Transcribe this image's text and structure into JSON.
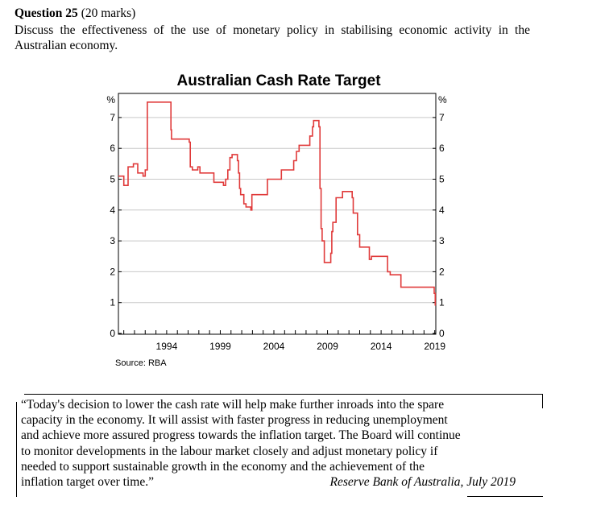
{
  "question": {
    "label": "Question 25",
    "marks": "(20 marks)",
    "text": "Discuss the effectiveness of the use of monetary policy in stabilising economic activity in the Australian economy."
  },
  "chart_data": {
    "type": "line",
    "title": "Australian Cash Rate Target",
    "source": "Source: RBA",
    "ylabel_left": "%",
    "ylabel_right": "%",
    "ylim": [
      0,
      8
    ],
    "yticks": [
      "0",
      "1",
      "2",
      "3",
      "4",
      "5",
      "6",
      "7"
    ],
    "xlim": [
      1990,
      2019.6
    ],
    "xticks": [
      "1994",
      "1999",
      "2004",
      "2009",
      "2014",
      "2019"
    ],
    "series": [
      {
        "name": "Cash Rate Target",
        "x": [
          1990.0,
          1990.5,
          1990.9,
          1991.4,
          1991.8,
          1992.3,
          1992.5,
          1992.7,
          1993.6,
          1994.7,
          1994.9,
          1994.95,
          1996.6,
          1996.7,
          1996.9,
          1997.4,
          1997.6,
          1997.9,
          1998.9,
          1999.8,
          2000.0,
          2000.2,
          2000.4,
          2000.6,
          2001.1,
          2001.2,
          2001.3,
          2001.4,
          2001.7,
          2001.9,
          2002.35,
          2002.45,
          2003.8,
          2003.9,
          2005.2,
          2006.35,
          2006.6,
          2006.85,
          2007.6,
          2007.85,
          2008.1,
          2008.2,
          2008.7,
          2008.8,
          2008.9,
          2009.0,
          2009.2,
          2009.8,
          2009.9,
          2010.0,
          2010.3,
          2010.9,
          2011.8,
          2011.9,
          2012.3,
          2012.5,
          2012.9,
          2013.4,
          2013.6,
          2015.1,
          2015.35,
          2016.35,
          2016.6,
          2019.45,
          2019.55
        ],
        "y": [
          5.1,
          4.8,
          5.4,
          5.5,
          5.2,
          5.1,
          5.3,
          7.5,
          7.5,
          7.5,
          6.6,
          6.3,
          6.2,
          5.4,
          5.3,
          5.4,
          5.2,
          5.2,
          4.9,
          4.8,
          5.0,
          5.3,
          5.7,
          5.8,
          5.6,
          5.2,
          4.7,
          4.5,
          4.2,
          4.1,
          4.0,
          4.5,
          4.5,
          5.0,
          5.3,
          5.6,
          5.9,
          6.1,
          6.1,
          6.4,
          6.7,
          6.9,
          6.7,
          4.7,
          3.4,
          3.0,
          2.3,
          2.6,
          3.3,
          3.6,
          4.4,
          4.6,
          4.4,
          3.9,
          3.2,
          2.8,
          2.8,
          2.4,
          2.5,
          2.0,
          1.9,
          1.5,
          1.5,
          1.3,
          0.9
        ]
      }
    ]
  },
  "quote": {
    "lines": [
      "“Today's decision to lower the cash rate will help make further inroads into the spare",
      "capacity in the economy. It will assist with faster progress in reducing unemployment",
      "and achieve more assured progress towards the inflation target. The Board will continue",
      "to monitor developments in the labour market closely and adjust monetary policy if",
      "needed to support sustainable growth in the economy and the achievement of the",
      "inflation target over time.”"
    ],
    "attribution": "Reserve Bank of Australia, July 2019",
    "colors": {
      "line": "#e03a3a",
      "grid": "#c8c8c8"
    }
  }
}
